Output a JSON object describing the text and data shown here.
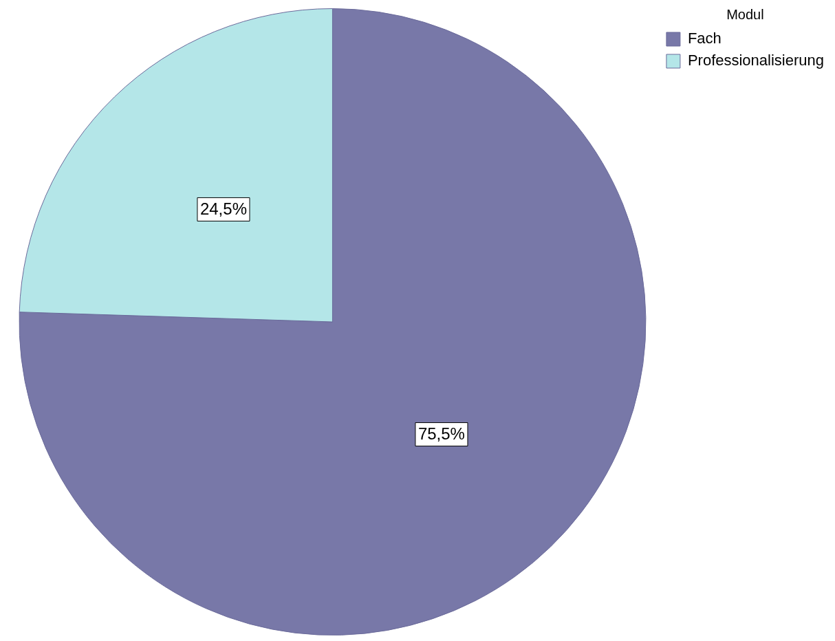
{
  "chart_data": {
    "type": "pie",
    "legend_title": "Modul",
    "legend": "top right",
    "categories": [
      "Fach",
      "Professionalisierung"
    ],
    "values": [
      75.5,
      24.5
    ],
    "colors": [
      "#7878a8",
      "#b4e6e8"
    ],
    "value_labels": [
      "75,5%",
      "24,5%"
    ]
  }
}
